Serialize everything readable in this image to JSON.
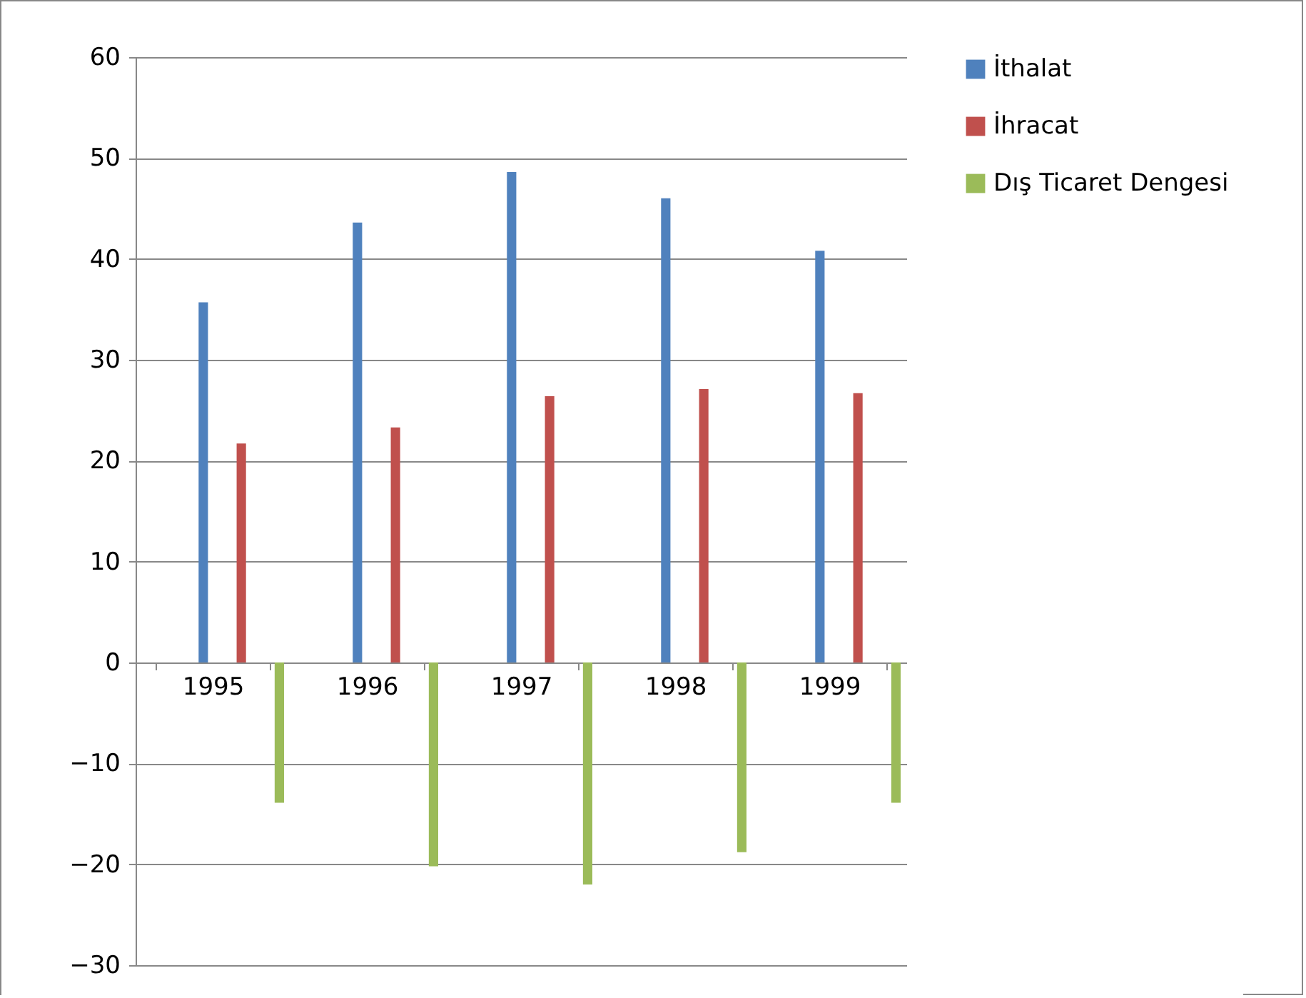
{
  "chart_data": {
    "type": "bar",
    "categories": [
      "1995",
      "1996",
      "1997",
      "1998",
      "1999"
    ],
    "series": [
      {
        "name": "İthalat",
        "color": "#4f81bd",
        "values": [
          35.7,
          43.6,
          48.6,
          46.0,
          40.8
        ]
      },
      {
        "name": "İhracat",
        "color": "#c0504d",
        "values": [
          21.7,
          23.3,
          26.4,
          27.1,
          26.7
        ]
      },
      {
        "name": "Dış Ticaret Dengesi",
        "color": "#9bbb59",
        "values": [
          -13.9,
          -20.2,
          -22.0,
          -18.8,
          -13.9
        ]
      }
    ],
    "ylim": [
      -30,
      60
    ],
    "yticks": [
      -30,
      -20,
      -10,
      0,
      10,
      20,
      30,
      40,
      50,
      60
    ],
    "grid": "y",
    "legend": "right"
  }
}
